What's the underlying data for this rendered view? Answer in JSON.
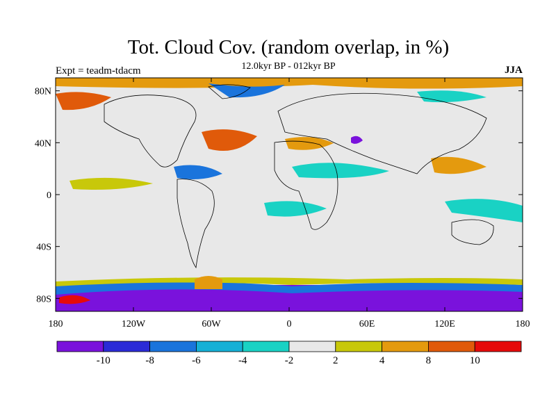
{
  "title": "Tot. Cloud Cov. (random overlap, in %)",
  "subtitle": "12.0kyr BP - 012kyr BP",
  "left_label": "Expt = teadm-tdacm",
  "season_label": "JJA",
  "lat_ticks": [
    {
      "value": 80,
      "label": "80N"
    },
    {
      "value": 40,
      "label": "40N"
    },
    {
      "value": 0,
      "label": "0"
    },
    {
      "value": -40,
      "label": "40S"
    },
    {
      "value": -80,
      "label": "80S"
    }
  ],
  "lon_ticks": [
    {
      "value": -180,
      "label": "180"
    },
    {
      "value": -120,
      "label": "120W"
    },
    {
      "value": -60,
      "label": "60W"
    },
    {
      "value": 0,
      "label": "0"
    },
    {
      "value": 60,
      "label": "60E"
    },
    {
      "value": 120,
      "label": "120E"
    },
    {
      "value": 180,
      "label": "180"
    }
  ],
  "colorbar": {
    "colors": [
      "#7a12dc",
      "#2b2bd7",
      "#1a74dc",
      "#15b0d6",
      "#19d2c4",
      "#e8e8e8",
      "#c8c80a",
      "#e49a0e",
      "#e05a0a",
      "#e60a0a"
    ],
    "labels": [
      "-10",
      "-8",
      "-6",
      "-4",
      "-2",
      "2",
      "4",
      "8",
      "10"
    ]
  }
}
